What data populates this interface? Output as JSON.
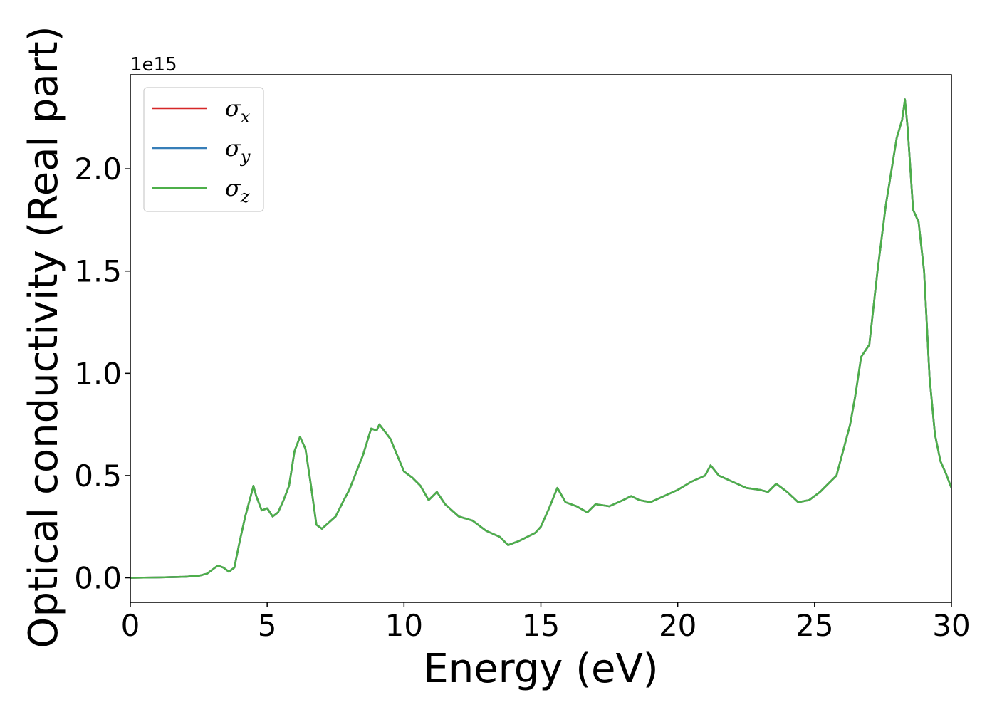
{
  "chart_data": {
    "type": "line",
    "xlabel": "Energy (eV)",
    "ylabel": "Optical conductivity (Real part)",
    "y_offset_text": "1e15",
    "xlim": [
      0,
      30
    ],
    "ylim": [
      -0.12,
      2.46
    ],
    "y_scale_factor": 1000000000000000.0,
    "x_ticks": [
      0,
      5,
      10,
      15,
      20,
      25,
      30
    ],
    "x_tick_labels": [
      "0",
      "5",
      "10",
      "15",
      "20",
      "25",
      "30"
    ],
    "y_ticks": [
      0.0,
      0.5,
      1.0,
      1.5,
      2.0
    ],
    "y_tick_labels": [
      "0.0",
      "0.5",
      "1.0",
      "1.5",
      "2.0"
    ],
    "grid": false,
    "legend_position": "top-left",
    "x": [
      0,
      1,
      2,
      2.5,
      2.8,
      3.0,
      3.2,
      3.4,
      3.6,
      3.8,
      4.0,
      4.2,
      4.4,
      4.5,
      4.6,
      4.8,
      5.0,
      5.2,
      5.4,
      5.6,
      5.8,
      6.0,
      6.2,
      6.4,
      6.6,
      6.8,
      7.0,
      7.5,
      7.8,
      8.0,
      8.5,
      8.8,
      9.0,
      9.1,
      9.5,
      10.0,
      10.3,
      10.6,
      10.9,
      11.2,
      11.5,
      12.0,
      12.5,
      13.0,
      13.5,
      13.8,
      14.2,
      14.8,
      15.0,
      15.3,
      15.6,
      15.9,
      16.3,
      16.7,
      17.0,
      17.5,
      18.0,
      18.3,
      18.6,
      19.0,
      19.5,
      20.0,
      20.5,
      21.0,
      21.2,
      21.5,
      22.0,
      22.5,
      23.0,
      23.3,
      23.6,
      24.0,
      24.4,
      24.8,
      25.2,
      25.5,
      25.8,
      26.0,
      26.3,
      26.5,
      26.7,
      27.0,
      27.3,
      27.6,
      28.0,
      28.2,
      28.3,
      28.4,
      28.6,
      28.8,
      29.0,
      29.2,
      29.4,
      29.6,
      29.8,
      30.0
    ],
    "series": [
      {
        "name": "σx",
        "color": "#d62728",
        "values": [
          0,
          0.002,
          0.005,
          0.01,
          0.02,
          0.04,
          0.06,
          0.05,
          0.03,
          0.05,
          0.18,
          0.3,
          0.4,
          0.45,
          0.4,
          0.33,
          0.34,
          0.3,
          0.32,
          0.38,
          0.45,
          0.62,
          0.69,
          0.63,
          0.45,
          0.26,
          0.24,
          0.3,
          0.38,
          0.43,
          0.6,
          0.73,
          0.72,
          0.75,
          0.68,
          0.52,
          0.49,
          0.45,
          0.38,
          0.42,
          0.36,
          0.3,
          0.28,
          0.23,
          0.2,
          0.16,
          0.18,
          0.22,
          0.25,
          0.34,
          0.44,
          0.37,
          0.35,
          0.32,
          0.36,
          0.35,
          0.38,
          0.4,
          0.38,
          0.37,
          0.4,
          0.43,
          0.47,
          0.5,
          0.55,
          0.5,
          0.47,
          0.44,
          0.43,
          0.42,
          0.46,
          0.42,
          0.37,
          0.38,
          0.42,
          0.46,
          0.5,
          0.6,
          0.75,
          0.9,
          1.08,
          1.14,
          1.5,
          1.82,
          2.15,
          2.24,
          2.34,
          2.2,
          1.8,
          1.74,
          1.5,
          0.98,
          0.7,
          0.57,
          0.51,
          0.44
        ]
      },
      {
        "name": "σy",
        "color": "#377eb8",
        "values": [
          0,
          0.002,
          0.005,
          0.01,
          0.02,
          0.04,
          0.06,
          0.05,
          0.03,
          0.05,
          0.18,
          0.3,
          0.4,
          0.45,
          0.4,
          0.33,
          0.34,
          0.3,
          0.32,
          0.38,
          0.45,
          0.62,
          0.69,
          0.63,
          0.45,
          0.26,
          0.24,
          0.3,
          0.38,
          0.43,
          0.6,
          0.73,
          0.72,
          0.75,
          0.68,
          0.52,
          0.49,
          0.45,
          0.38,
          0.42,
          0.36,
          0.3,
          0.28,
          0.23,
          0.2,
          0.16,
          0.18,
          0.22,
          0.25,
          0.34,
          0.44,
          0.37,
          0.35,
          0.32,
          0.36,
          0.35,
          0.38,
          0.4,
          0.38,
          0.37,
          0.4,
          0.43,
          0.47,
          0.5,
          0.55,
          0.5,
          0.47,
          0.44,
          0.43,
          0.42,
          0.46,
          0.42,
          0.37,
          0.38,
          0.42,
          0.46,
          0.5,
          0.6,
          0.75,
          0.9,
          1.08,
          1.14,
          1.5,
          1.82,
          2.15,
          2.24,
          2.34,
          2.2,
          1.8,
          1.74,
          1.5,
          0.98,
          0.7,
          0.57,
          0.51,
          0.44
        ]
      },
      {
        "name": "σz",
        "color": "#4daf4a",
        "values": [
          0,
          0.002,
          0.005,
          0.01,
          0.02,
          0.04,
          0.06,
          0.05,
          0.03,
          0.05,
          0.18,
          0.3,
          0.4,
          0.45,
          0.4,
          0.33,
          0.34,
          0.3,
          0.32,
          0.38,
          0.45,
          0.62,
          0.69,
          0.63,
          0.45,
          0.26,
          0.24,
          0.3,
          0.38,
          0.43,
          0.6,
          0.73,
          0.72,
          0.75,
          0.68,
          0.52,
          0.49,
          0.45,
          0.38,
          0.42,
          0.36,
          0.3,
          0.28,
          0.23,
          0.2,
          0.16,
          0.18,
          0.22,
          0.25,
          0.34,
          0.44,
          0.37,
          0.35,
          0.32,
          0.36,
          0.35,
          0.38,
          0.4,
          0.38,
          0.37,
          0.4,
          0.43,
          0.47,
          0.5,
          0.55,
          0.5,
          0.47,
          0.44,
          0.43,
          0.42,
          0.46,
          0.42,
          0.37,
          0.38,
          0.42,
          0.46,
          0.5,
          0.6,
          0.75,
          0.9,
          1.08,
          1.14,
          1.5,
          1.82,
          2.15,
          2.24,
          2.34,
          2.2,
          1.8,
          1.74,
          1.5,
          0.98,
          0.7,
          0.57,
          0.51,
          0.44
        ]
      }
    ],
    "legend": [
      {
        "symbol": "σ",
        "sub": "x"
      },
      {
        "symbol": "σ",
        "sub": "y"
      },
      {
        "symbol": "σ",
        "sub": "z"
      }
    ]
  }
}
